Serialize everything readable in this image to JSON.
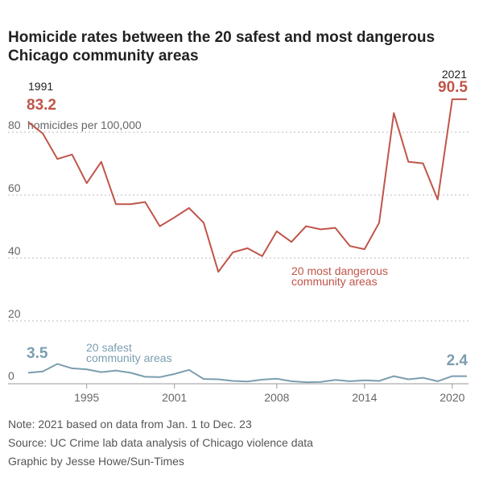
{
  "title": "Homicide rates between the 20 safest and most dangerous Chicago community areas",
  "chart_data": {
    "type": "line",
    "title": "Homicide rates between the 20 safest and most dangerous Chicago community areas",
    "ylabel": "homicides per 100,000",
    "xlim": [
      1991,
      2021
    ],
    "ylim": [
      0,
      90.5
    ],
    "y_ticks": [
      "0",
      "20",
      "40",
      "60",
      "80"
    ],
    "x_ticks": [
      "1995",
      "2001",
      "2008",
      "2014",
      "2020"
    ],
    "grid": true,
    "x": [
      1991,
      1992,
      1993,
      1994,
      1995,
      1996,
      1997,
      1998,
      1999,
      2000,
      2001,
      2002,
      2003,
      2004,
      2005,
      2006,
      2007,
      2008,
      2009,
      2010,
      2011,
      2012,
      2013,
      2014,
      2015,
      2016,
      2017,
      2018,
      2019,
      2020,
      2021
    ],
    "series": [
      {
        "name": "20 most dangerous community areas",
        "color": "#c0554a",
        "values": [
          83.2,
          79.6,
          71.5,
          72.9,
          63.8,
          70.6,
          57.1,
          57.1,
          57.8,
          50.1,
          52.9,
          55.9,
          51.2,
          35.6,
          41.8,
          43.1,
          40.6,
          48.5,
          45.1,
          50.1,
          49.1,
          49.6,
          43.8,
          42.8,
          51.2,
          86.1,
          70.6,
          70.1,
          58.6,
          90.5,
          90.5
        ]
      },
      {
        "name": "20 safest community areas",
        "color": "#7b9eb0",
        "values": [
          3.5,
          3.9,
          6.3,
          4.9,
          4.6,
          3.7,
          4.2,
          3.5,
          2.2,
          2.1,
          3.1,
          4.4,
          1.5,
          1.4,
          0.9,
          0.7,
          1.3,
          1.6,
          0.8,
          0.5,
          0.6,
          1.2,
          0.8,
          1.1,
          0.9,
          2.4,
          1.4,
          1.9,
          0.8,
          2.4,
          2.4
        ]
      }
    ],
    "annotations": {
      "start_year": "1991",
      "start_value": "83.2",
      "end_year": "2021",
      "end_value": "90.5",
      "safe_start_value": "3.5",
      "safe_end_value": "2.4",
      "dangerous_label_line1": "20 most dangerous",
      "dangerous_label_line2": "community areas",
      "safe_label_line1": "20 safest",
      "safe_label_line2": "community areas"
    }
  },
  "notes": {
    "note": "Note: 2021 based on data from Jan. 1 to Dec. 23",
    "source": "Source: UC Crime lab data analysis of Chicago violence data",
    "credit": "Graphic by Jesse Howe/Sun-Times"
  }
}
